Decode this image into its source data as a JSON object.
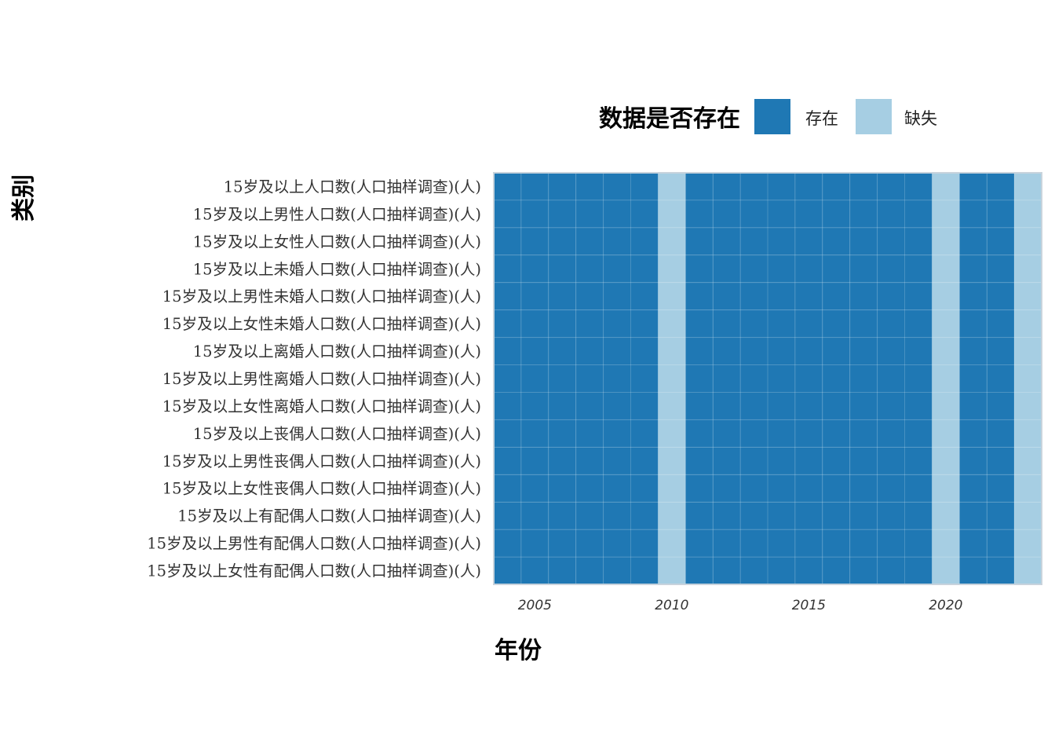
{
  "chart_data": {
    "type": "heatmap",
    "title": "",
    "xlabel": "年份",
    "ylabel": "类别",
    "legend": {
      "title": "数据是否存在",
      "position": "top",
      "entries": [
        {
          "label": "存在",
          "color": "#1f78b4"
        },
        {
          "label": "缺失",
          "color": "#a6cee3"
        }
      ]
    },
    "colors": {
      "present": "#1f78b4",
      "missing": "#a6cee3",
      "grid": "#ffffff",
      "border": "#c8d3dc"
    },
    "x": [
      2004,
      2005,
      2006,
      2007,
      2008,
      2009,
      2010,
      2011,
      2012,
      2013,
      2014,
      2015,
      2016,
      2017,
      2018,
      2019,
      2020,
      2021,
      2022,
      2023
    ],
    "xlim": [
      2003.5,
      2023.5
    ],
    "x_ticks": [
      "2005",
      "2010",
      "2015",
      "2020"
    ],
    "x_tick_values": [
      2005,
      2010,
      2015,
      2020
    ],
    "categories": [
      "15岁及以上人口数(人口抽样调查)(人)",
      "15岁及以上男性人口数(人口抽样调查)(人)",
      "15岁及以上女性人口数(人口抽样调查)(人)",
      "15岁及以上未婚人口数(人口抽样调查)(人)",
      "15岁及以上男性未婚人口数(人口抽样调查)(人)",
      "15岁及以上女性未婚人口数(人口抽样调查)(人)",
      "15岁及以上离婚人口数(人口抽样调查)(人)",
      "15岁及以上男性离婚人口数(人口抽样调查)(人)",
      "15岁及以上女性离婚人口数(人口抽样调查)(人)",
      "15岁及以上丧偶人口数(人口抽样调查)(人)",
      "15岁及以上男性丧偶人口数(人口抽样调查)(人)",
      "15岁及以上女性丧偶人口数(人口抽样调查)(人)",
      "15岁及以上有配偶人口数(人口抽样调查)(人)",
      "15岁及以上男性有配偶人口数(人口抽样调查)(人)",
      "15岁及以上女性有配偶人口数(人口抽样调查)(人)"
    ],
    "missing_years": [
      2010,
      2020,
      2023
    ],
    "grid": true
  }
}
